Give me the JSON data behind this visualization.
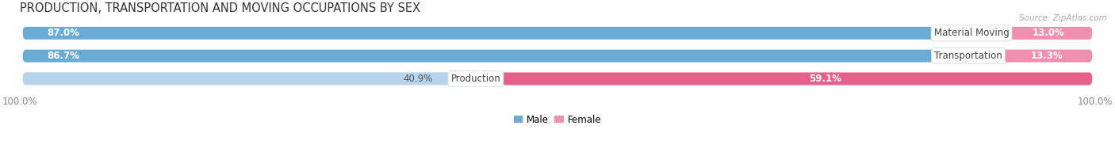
{
  "title": "PRODUCTION, TRANSPORTATION AND MOVING OCCUPATIONS BY SEX",
  "source": "Source: ZipAtlas.com",
  "categories": [
    "Material Moving",
    "Transportation",
    "Production"
  ],
  "male_values": [
    87.0,
    86.7,
    40.9
  ],
  "female_values": [
    13.0,
    13.3,
    59.1
  ],
  "male_color_strong": "#6aabd6",
  "male_color_light": "#b8d4ec",
  "female_color_strong": "#f090b0",
  "female_color_dark": "#e8608a",
  "bar_bg_color": "#e4e4e4",
  "title_fontsize": 10.5,
  "label_fontsize": 8.5,
  "value_fontsize": 8.5,
  "tick_fontsize": 8.5,
  "bar_height": 0.55,
  "bar_gap": 0.22
}
